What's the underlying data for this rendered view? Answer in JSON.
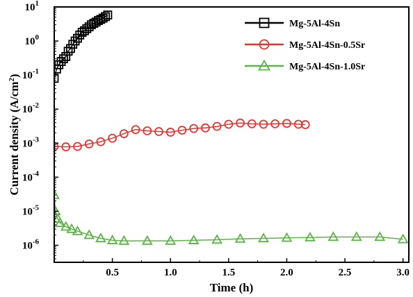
{
  "chart_data": {
    "type": "scatter",
    "xlabel": "Time (h)",
    "ylabel": "Current density (A/cm²)",
    "ylabel_parts": {
      "base": "Current density (A/cm",
      "sup": "2",
      "tail": ")"
    },
    "xlim": [
      0,
      3.05
    ],
    "ylim_log10": [
      -6.5,
      1
    ],
    "yscale": "log",
    "grid": false,
    "legend_position": "top-right",
    "x_ticks": [
      {
        "value": 0.5,
        "label": "0.5"
      },
      {
        "value": 1.0,
        "label": "1.0"
      },
      {
        "value": 1.5,
        "label": "1.5"
      },
      {
        "value": 2.0,
        "label": "2.0"
      },
      {
        "value": 2.5,
        "label": "2.5"
      },
      {
        "value": 3.0,
        "label": "3.0"
      }
    ],
    "y_ticks": [
      {
        "exp": 1,
        "base": "10",
        "sup": "1"
      },
      {
        "exp": 0,
        "base": "10",
        "sup": "0"
      },
      {
        "exp": -1,
        "base": "10",
        "sup": "-1"
      },
      {
        "exp": -2,
        "base": "10",
        "sup": "-2"
      },
      {
        "exp": -3,
        "base": "10",
        "sup": "-3"
      },
      {
        "exp": -4,
        "base": "10",
        "sup": "-4"
      },
      {
        "exp": -5,
        "base": "10",
        "sup": "-5"
      },
      {
        "exp": -6,
        "base": "10",
        "sup": "-6"
      }
    ],
    "series": [
      {
        "name": "Mg-5Al-4Sn",
        "color": "#000000",
        "marker": "square",
        "x": [
          0.0,
          0.02,
          0.04,
          0.06,
          0.08,
          0.1,
          0.12,
          0.14,
          0.16,
          0.18,
          0.2,
          0.22,
          0.24,
          0.26,
          0.28,
          0.3,
          0.32,
          0.34,
          0.36,
          0.38,
          0.4,
          0.42,
          0.44,
          0.46
        ],
        "y": [
          0.08,
          0.15,
          0.2,
          0.25,
          0.3,
          0.35,
          0.5,
          0.6,
          0.8,
          1.0,
          1.2,
          1.5,
          1.8,
          2.0,
          2.3,
          2.6,
          3.0,
          3.3,
          3.6,
          4.0,
          4.3,
          4.7,
          5.2,
          5.8
        ]
      },
      {
        "name": "Mg-5Al-4Sn-0.5Sr",
        "color": "#e8332e",
        "marker": "circle",
        "x": [
          0.0,
          0.1,
          0.2,
          0.3,
          0.4,
          0.5,
          0.6,
          0.7,
          0.8,
          0.9,
          1.0,
          1.1,
          1.2,
          1.3,
          1.4,
          1.5,
          1.6,
          1.7,
          1.8,
          1.9,
          2.0,
          2.1,
          2.16
        ],
        "y": [
          0.0008,
          0.00078,
          0.0008,
          0.00095,
          0.0011,
          0.0014,
          0.0019,
          0.0025,
          0.0023,
          0.0022,
          0.0021,
          0.0024,
          0.0027,
          0.0028,
          0.0031,
          0.0036,
          0.0039,
          0.0037,
          0.0036,
          0.0037,
          0.0038,
          0.0036,
          0.0035
        ]
      },
      {
        "name": "Mg-5Al-4Sn-1.0Sr",
        "color": "#5cb346",
        "marker": "triangle",
        "x": [
          0.0,
          0.01,
          0.03,
          0.05,
          0.1,
          0.15,
          0.2,
          0.3,
          0.4,
          0.5,
          0.6,
          0.8,
          1.0,
          1.2,
          1.4,
          1.6,
          1.8,
          2.0,
          2.2,
          2.4,
          2.6,
          2.8,
          3.0
        ],
        "y": [
          3e-05,
          1e-05,
          6e-06,
          4.5e-06,
          3.5e-06,
          3e-06,
          2.6e-06,
          2e-06,
          1.6e-06,
          1.4e-06,
          1.35e-06,
          1.35e-06,
          1.35e-06,
          1.4e-06,
          1.45e-06,
          1.55e-06,
          1.6e-06,
          1.65e-06,
          1.7e-06,
          1.75e-06,
          1.75e-06,
          1.75e-06,
          1.5e-06
        ]
      }
    ]
  }
}
